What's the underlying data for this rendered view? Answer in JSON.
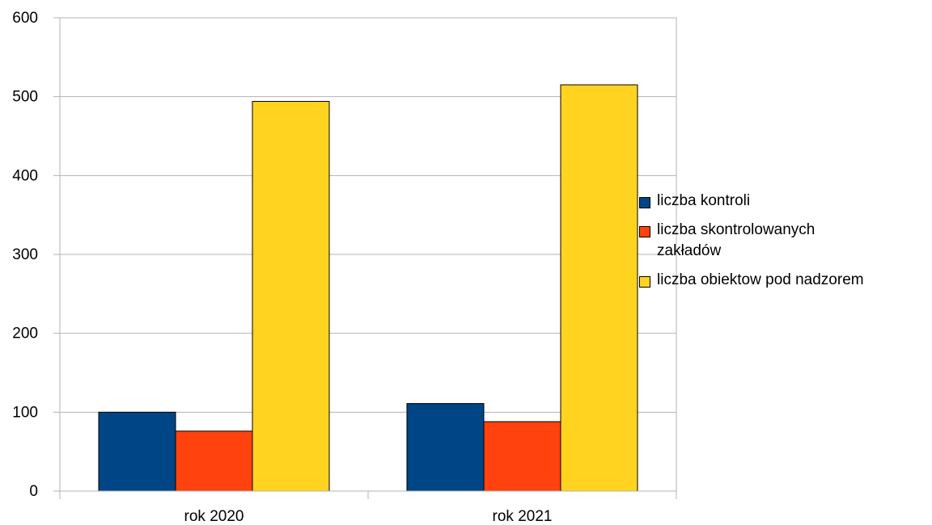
{
  "chart_data": {
    "type": "bar",
    "title": "",
    "xlabel": "",
    "ylabel": "",
    "categories": [
      "rok 2020",
      "rok 2021"
    ],
    "series": [
      {
        "name": "liczba kontroli",
        "values": [
          100,
          111
        ],
        "color": "#004586"
      },
      {
        "name": "liczba skontrolowanych zakładów",
        "values": [
          76,
          88
        ],
        "color": "#ff420e"
      },
      {
        "name": "liczba obiektow pod nadzorem",
        "values": [
          494,
          515
        ],
        "color": "#ffd320"
      }
    ],
    "ylim": [
      0,
      600
    ],
    "yticks": [
      "0",
      "100",
      "200",
      "300",
      "400",
      "500",
      "600"
    ],
    "grid": true,
    "legend_position": "right"
  }
}
